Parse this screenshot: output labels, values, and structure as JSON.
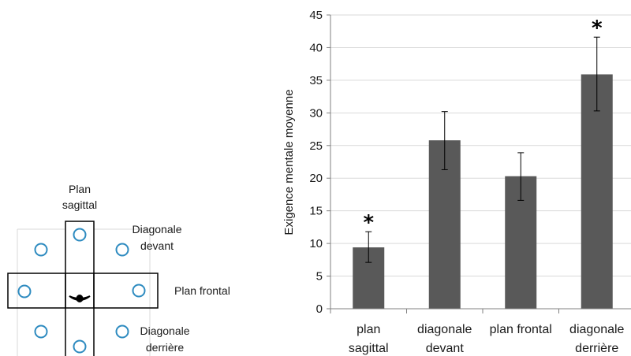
{
  "diagram": {
    "labels": {
      "sagittal": [
        "Plan",
        "sagittal"
      ],
      "diag_front": [
        "Diagonale",
        "devant"
      ],
      "frontal": "Plan frontal",
      "diag_back": [
        "Diagonale",
        "derrière"
      ]
    },
    "colors": {
      "target": "#2e8bc0",
      "frame": "#000000",
      "guide": "#d9d9d9"
    }
  },
  "chart_data": {
    "type": "bar",
    "categories": [
      [
        "plan",
        "sagittal"
      ],
      [
        "diagonale",
        "devant"
      ],
      [
        "plan frontal"
      ],
      [
        "diagonale",
        "derrière"
      ]
    ],
    "values": [
      9.4,
      25.8,
      20.3,
      35.9
    ],
    "error_low": [
      7.1,
      21.3,
      16.6,
      30.3
    ],
    "error_high": [
      11.8,
      30.2,
      23.9,
      41.6
    ],
    "significant": [
      true,
      false,
      false,
      true
    ],
    "significance_marker": "*",
    "ylabel": "Exigence mentale moyenne",
    "ylim": [
      0,
      45
    ],
    "yticks": [
      0,
      5,
      10,
      15,
      20,
      25,
      30,
      35,
      40,
      45
    ],
    "grid": true,
    "colors": {
      "bar": "#595959",
      "grid": "#d9d9d9",
      "axis": "#808080"
    }
  }
}
